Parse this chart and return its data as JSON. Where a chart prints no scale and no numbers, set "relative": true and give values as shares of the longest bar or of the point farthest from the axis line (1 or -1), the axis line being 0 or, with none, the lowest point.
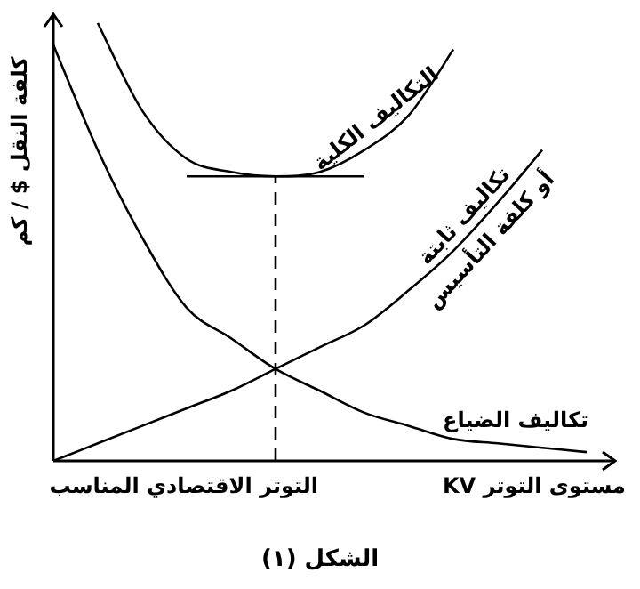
{
  "chart_data": {
    "type": "line",
    "relative": true,
    "categories": [
      null,
      null,
      null,
      null,
      null,
      null,
      null,
      null,
      null,
      null,
      null,
      null,
      null
    ],
    "xlabel": "مستوى التوتر KV",
    "ylabel": "كلفة النقل $ / كم",
    "series": [
      {
        "name": "التكاليف الكلية",
        "color": "#000000",
        "values": [
          null,
          1,
          0.8,
          0.69,
          0.66,
          0.65,
          0.66,
          0.71,
          0.79,
          0.94,
          null,
          null,
          null
        ]
      },
      {
        "name": "تكاليف ثابتة\nأو كلفة التأسيس",
        "color": "#000000",
        "values": [
          0,
          0.04,
          0.08,
          0.12,
          0.16,
          0.21,
          0.26,
          0.31,
          0.39,
          0.48,
          0.59,
          0.71,
          null
        ]
      },
      {
        "name": "تكاليف الضياع",
        "color": "#000000",
        "values": [
          0.95,
          0.71,
          0.51,
          0.35,
          0.28,
          0.21,
          0.16,
          0.11,
          0.08,
          0.05,
          0.04,
          0.03,
          0.02
        ]
      },
      {
        "color": "#000000",
        "values": [
          null,
          null,
          null,
          0.65,
          0.65,
          0.65,
          0.65,
          0.65,
          null,
          null,
          null,
          null,
          null
        ]
      }
    ],
    "annotations": [
      "التوتر الاقتصادي المناسب",
      "الشكل (١)"
    ]
  }
}
